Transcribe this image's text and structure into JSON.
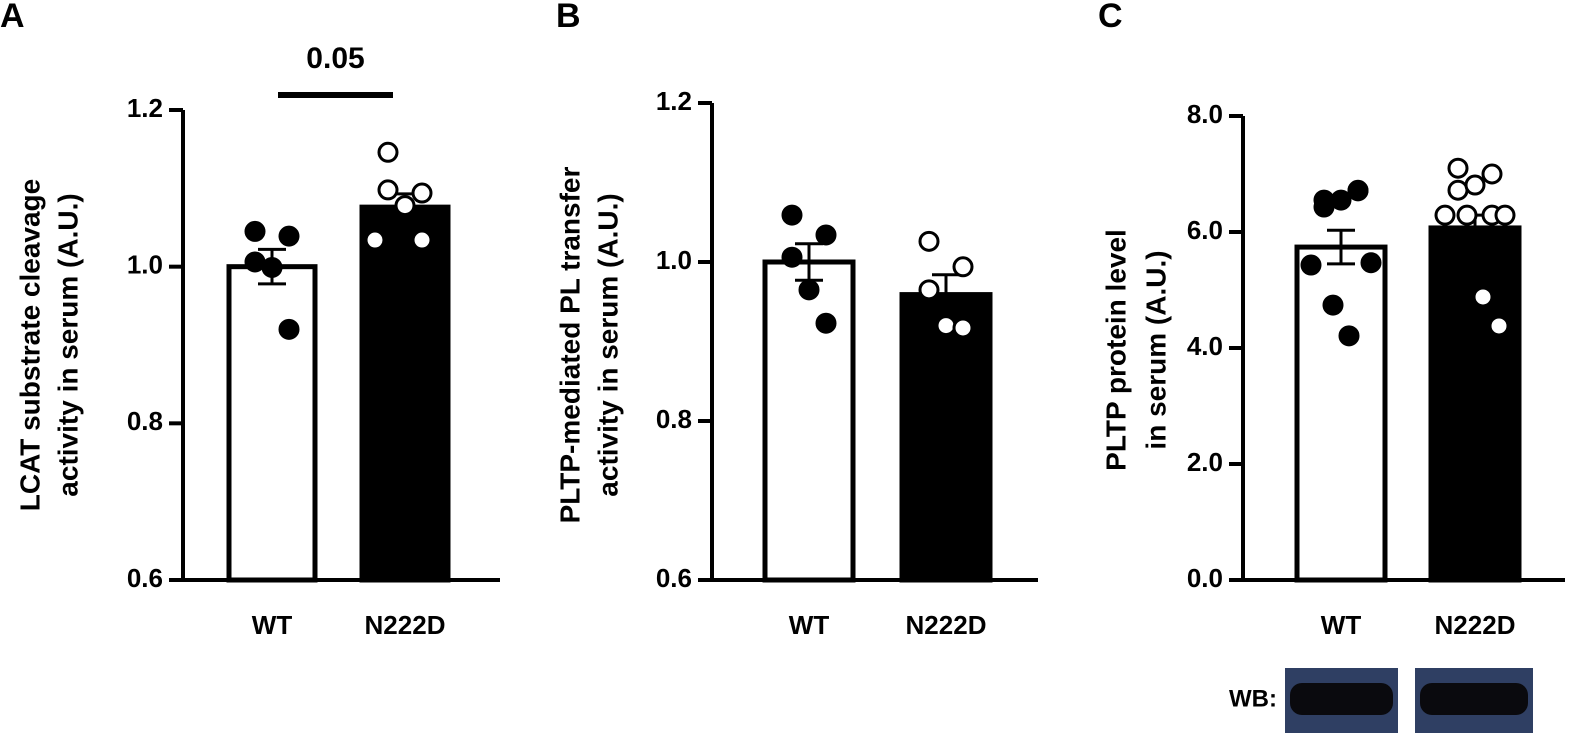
{
  "chart_data": [
    {
      "type": "bar-dot",
      "panel": "A",
      "ylabel": [
        "LCAT substrate cleavage",
        "activity in serum (A.U.)"
      ],
      "categories": [
        "WT",
        "N222D"
      ],
      "bar_colors": [
        "#ffffff",
        "#000000"
      ],
      "point_colors": [
        "#000000",
        "#ffffff"
      ],
      "means": [
        1.0,
        1.076
      ],
      "errors": [
        0.022,
        0.017
      ],
      "points": [
        [
          1.045,
          1.039,
          1.006,
          0.999,
          0.92
        ],
        [
          1.146,
          1.094,
          1.098,
          1.078,
          1.034,
          1.034
        ]
      ],
      "annotation": "0.05",
      "ylim": [
        0.6,
        1.2
      ],
      "yticks": [
        0.6,
        0.8,
        {
          "value": 1.0,
          "label": "1.0"
        },
        1.2
      ]
    },
    {
      "type": "bar-dot",
      "panel": "B",
      "ylabel": [
        "PLTP-mediated PL transfer",
        "activity in serum (A.U.)"
      ],
      "categories": [
        "WT",
        "N222D"
      ],
      "bar_colors": [
        "#ffffff",
        "#000000"
      ],
      "point_colors": [
        "#000000",
        "#ffffff"
      ],
      "means": [
        1.0,
        0.959
      ],
      "errors": [
        0.023,
        0.025
      ],
      "points": [
        [
          1.059,
          1.034,
          1.006,
          0.965,
          0.923
        ],
        [
          1.026,
          0.994,
          0.965,
          0.92,
          0.917
        ]
      ],
      "ylim": [
        0.6,
        1.2
      ],
      "yticks": [
        0.6,
        0.8,
        {
          "value": 1.0,
          "label": "1.0"
        },
        1.2
      ]
    },
    {
      "type": "bar-dot",
      "panel": "C",
      "ylabel": [
        "PLTP protein level",
        "in serum (A.U.)"
      ],
      "categories": [
        "WT",
        "N222D"
      ],
      "bar_colors": [
        "#ffffff",
        "#000000"
      ],
      "point_colors": [
        "#000000",
        "#ffffff"
      ],
      "means": [
        5.74,
        6.07
      ],
      "errors": [
        0.29,
        0.22
      ],
      "points": [
        [
          6.55,
          6.72,
          6.43,
          6.55,
          6.71,
          5.43,
          5.47,
          4.74,
          4.21
        ],
        [
          7.1,
          7.0,
          6.72,
          6.81,
          6.29,
          6.29,
          6.29,
          6.29,
          4.88,
          4.38
        ]
      ],
      "blot_label": "WB:",
      "ylim": [
        0.0,
        8.0
      ],
      "yticks": [
        {
          "value": 0.0,
          "label": "0.0"
        },
        {
          "value": 2.0,
          "label": "2.0"
        },
        {
          "value": 4.0,
          "label": "4.0"
        },
        {
          "value": 6.0,
          "label": "6.0"
        },
        {
          "value": 8.0,
          "label": "8.0"
        }
      ]
    }
  ]
}
